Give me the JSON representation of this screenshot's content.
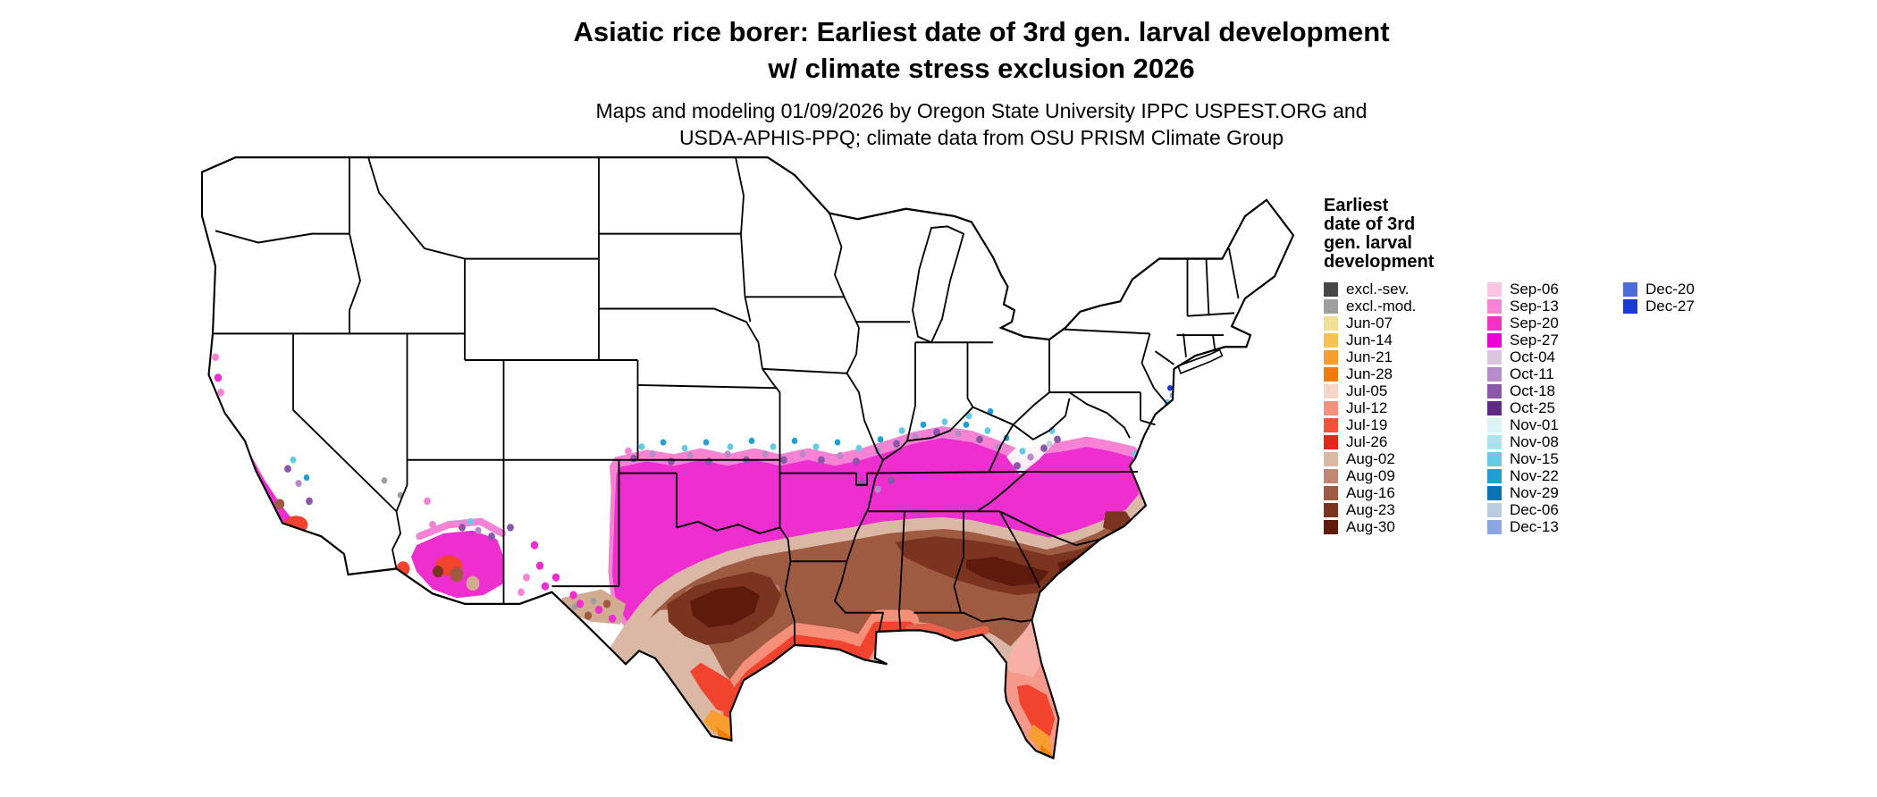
{
  "title": {
    "line1": "Asiatic rice borer: Earliest date of 3rd gen. larval development",
    "line2": "w/ climate stress exclusion 2026"
  },
  "subtitle": {
    "line1": "Maps and modeling 01/09/2026 by Oregon State University IPPC USPEST.ORG and",
    "line2": "USDA-APHIS-PPQ; climate data from OSU PRISM Climate Group"
  },
  "legend": {
    "title_lines": [
      "Earliest",
      "date of 3rd",
      "gen. larval",
      "development"
    ],
    "columns": [
      [
        {
          "label": "excl.-sev.",
          "color": "#474747"
        },
        {
          "label": "excl.-mod.",
          "color": "#9e9e9e"
        },
        {
          "label": "Jun-07",
          "color": "#f0e097"
        },
        {
          "label": "Jun-14",
          "color": "#f6c350"
        },
        {
          "label": "Jun-21",
          "color": "#f89e30"
        },
        {
          "label": "Jun-28",
          "color": "#ee7d08"
        },
        {
          "label": "Jul-05",
          "color": "#f7d6c9"
        },
        {
          "label": "Jul-12",
          "color": "#f4917c"
        },
        {
          "label": "Jul-19",
          "color": "#f4503a"
        },
        {
          "label": "Jul-26",
          "color": "#e32719"
        },
        {
          "label": "Aug-02",
          "color": "#dbb7a6"
        },
        {
          "label": "Aug-09",
          "color": "#c08873"
        },
        {
          "label": "Aug-16",
          "color": "#9e5b42"
        },
        {
          "label": "Aug-23",
          "color": "#7b3420"
        },
        {
          "label": "Aug-30",
          "color": "#5e1b0c"
        }
      ],
      [
        {
          "label": "Sep-06",
          "color": "#fcc3e3"
        },
        {
          "label": "Sep-13",
          "color": "#f883d4"
        },
        {
          "label": "Sep-20",
          "color": "#f32fca"
        },
        {
          "label": "Sep-27",
          "color": "#ea00d0"
        },
        {
          "label": "Oct-04",
          "color": "#dcc6de"
        },
        {
          "label": "Oct-11",
          "color": "#b58cc8"
        },
        {
          "label": "Oct-18",
          "color": "#8a57a9"
        },
        {
          "label": "Oct-25",
          "color": "#5e2b80"
        },
        {
          "label": "Nov-01",
          "color": "#daf4f8"
        },
        {
          "label": "Nov-08",
          "color": "#abe3ef"
        },
        {
          "label": "Nov-15",
          "color": "#63cbe5"
        },
        {
          "label": "Nov-22",
          "color": "#219fd3"
        },
        {
          "label": "Nov-29",
          "color": "#0b73b2"
        },
        {
          "label": "Dec-06",
          "color": "#bcccdf"
        },
        {
          "label": "Dec-13",
          "color": "#8ba6e3"
        }
      ],
      [
        {
          "label": "Dec-20",
          "color": "#4d6cda"
        },
        {
          "label": "Dec-27",
          "color": "#1a3ad6"
        }
      ]
    ]
  }
}
